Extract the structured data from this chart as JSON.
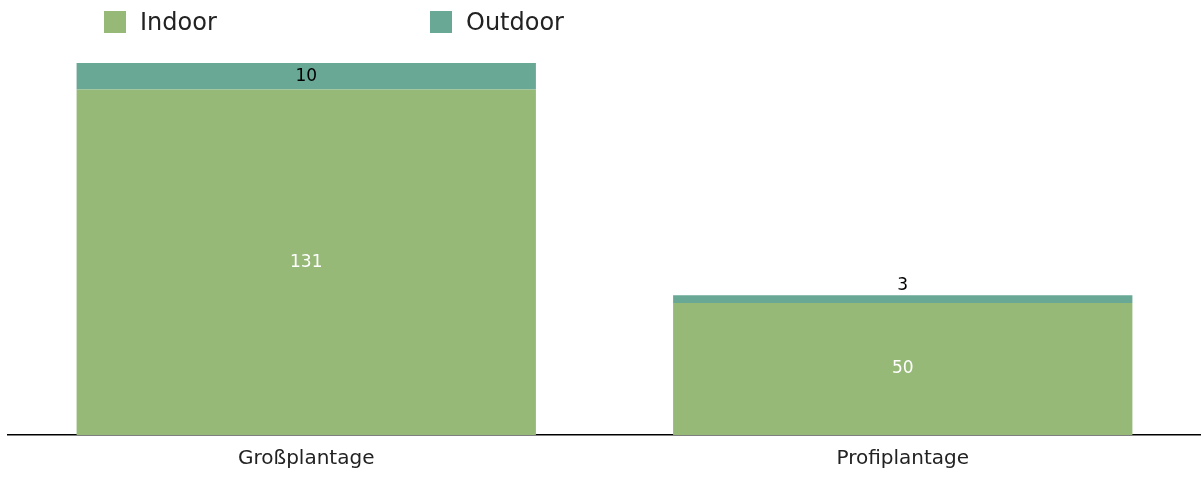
{
  "chart_data": {
    "type": "bar",
    "stacked": true,
    "categories": [
      "Großplantage",
      "Profiplantage"
    ],
    "series": [
      {
        "name": "Indoor",
        "color": "#96b977",
        "values": [
          131,
          50
        ]
      },
      {
        "name": "Outdoor",
        "color": "#68a895",
        "values": [
          10,
          3
        ]
      }
    ],
    "data_labels": true,
    "legend": "top left",
    "grid": false
  }
}
